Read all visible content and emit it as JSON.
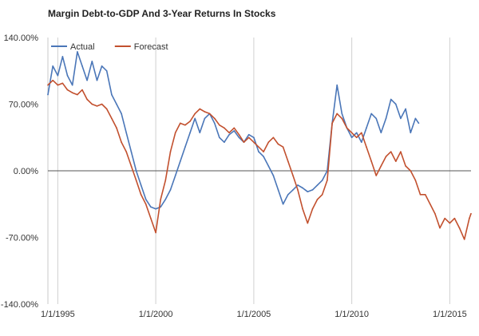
{
  "chart_data": {
    "type": "line",
    "title": "Margin Debt-to-GDP And 3-Year Returns In Stocks",
    "xlabel": "",
    "ylabel": "",
    "ylim": [
      -140,
      140
    ],
    "yticks": [
      140,
      70,
      0,
      -70,
      -140
    ],
    "ytick_labels": [
      "140.00%",
      "70.00%",
      "0.00%",
      "-70.00%",
      "-140.00%"
    ],
    "xlim": [
      "1994-07-01",
      "2016-02-01"
    ],
    "xticks": [
      "1995-01-01",
      "2000-01-01",
      "2005-01-01",
      "2010-01-01",
      "2015-01-01"
    ],
    "xtick_labels": [
      "1/1/1995",
      "1/1/2000",
      "1/1/2005",
      "1/1/2010",
      "1/1/2015"
    ],
    "grid": "vertical",
    "legend": "top-left",
    "series": [
      {
        "name": "Actual",
        "color": "#4a76b8",
        "points": [
          [
            "1994-07-01",
            80
          ],
          [
            "1994-10-01",
            110
          ],
          [
            "1995-01-01",
            100
          ],
          [
            "1995-04-01",
            120
          ],
          [
            "1995-07-01",
            100
          ],
          [
            "1995-10-01",
            90
          ],
          [
            "1996-01-01",
            125
          ],
          [
            "1996-04-01",
            110
          ],
          [
            "1996-07-01",
            95
          ],
          [
            "1996-10-01",
            115
          ],
          [
            "1997-01-01",
            95
          ],
          [
            "1997-04-01",
            110
          ],
          [
            "1997-07-01",
            105
          ],
          [
            "1997-10-01",
            80
          ],
          [
            "1998-01-01",
            70
          ],
          [
            "1998-04-01",
            60
          ],
          [
            "1998-07-01",
            40
          ],
          [
            "1998-10-01",
            20
          ],
          [
            "1999-01-01",
            0
          ],
          [
            "1999-04-01",
            -15
          ],
          [
            "1999-07-01",
            -30
          ],
          [
            "1999-10-01",
            -38
          ],
          [
            "2000-01-01",
            -40
          ],
          [
            "2000-04-01",
            -38
          ],
          [
            "2000-07-01",
            -30
          ],
          [
            "2000-10-01",
            -20
          ],
          [
            "2001-01-01",
            -5
          ],
          [
            "2001-04-01",
            10
          ],
          [
            "2001-07-01",
            25
          ],
          [
            "2001-10-01",
            40
          ],
          [
            "2002-01-01",
            55
          ],
          [
            "2002-04-01",
            40
          ],
          [
            "2002-07-01",
            55
          ],
          [
            "2002-10-01",
            60
          ],
          [
            "2003-01-01",
            50
          ],
          [
            "2003-04-01",
            35
          ],
          [
            "2003-07-01",
            30
          ],
          [
            "2003-10-01",
            38
          ],
          [
            "2004-01-01",
            42
          ],
          [
            "2004-04-01",
            35
          ],
          [
            "2004-07-01",
            30
          ],
          [
            "2004-10-01",
            38
          ],
          [
            "2005-01-01",
            35
          ],
          [
            "2005-04-01",
            20
          ],
          [
            "2005-07-01",
            15
          ],
          [
            "2005-10-01",
            5
          ],
          [
            "2006-01-01",
            -5
          ],
          [
            "2006-04-01",
            -20
          ],
          [
            "2006-07-01",
            -35
          ],
          [
            "2006-10-01",
            -25
          ],
          [
            "2007-01-01",
            -20
          ],
          [
            "2007-04-01",
            -15
          ],
          [
            "2007-07-01",
            -18
          ],
          [
            "2007-10-01",
            -22
          ],
          [
            "2008-01-01",
            -20
          ],
          [
            "2008-04-01",
            -15
          ],
          [
            "2008-07-01",
            -10
          ],
          [
            "2008-10-01",
            0
          ],
          [
            "2009-01-01",
            50
          ],
          [
            "2009-04-01",
            90
          ],
          [
            "2009-07-01",
            60
          ],
          [
            "2009-10-01",
            45
          ],
          [
            "2010-01-01",
            35
          ],
          [
            "2010-04-01",
            40
          ],
          [
            "2010-07-01",
            30
          ],
          [
            "2010-10-01",
            45
          ],
          [
            "2011-01-01",
            60
          ],
          [
            "2011-04-01",
            55
          ],
          [
            "2011-07-01",
            40
          ],
          [
            "2011-10-01",
            55
          ],
          [
            "2012-01-01",
            75
          ],
          [
            "2012-04-01",
            70
          ],
          [
            "2012-07-01",
            55
          ],
          [
            "2012-10-01",
            65
          ],
          [
            "2013-01-01",
            40
          ],
          [
            "2013-04-01",
            55
          ],
          [
            "2013-06-01",
            50
          ]
        ]
      },
      {
        "name": "Forecast",
        "color": "#c2502e",
        "points": [
          [
            "1994-07-01",
            90
          ],
          [
            "1994-10-01",
            95
          ],
          [
            "1995-01-01",
            90
          ],
          [
            "1995-04-01",
            92
          ],
          [
            "1995-07-01",
            85
          ],
          [
            "1995-10-01",
            82
          ],
          [
            "1996-01-01",
            80
          ],
          [
            "1996-04-01",
            85
          ],
          [
            "1996-07-01",
            75
          ],
          [
            "1996-10-01",
            70
          ],
          [
            "1997-01-01",
            68
          ],
          [
            "1997-04-01",
            70
          ],
          [
            "1997-07-01",
            65
          ],
          [
            "1997-10-01",
            55
          ],
          [
            "1998-01-01",
            45
          ],
          [
            "1998-04-01",
            30
          ],
          [
            "1998-07-01",
            20
          ],
          [
            "1998-10-01",
            5
          ],
          [
            "1999-01-01",
            -10
          ],
          [
            "1999-04-01",
            -25
          ],
          [
            "1999-07-01",
            -35
          ],
          [
            "1999-10-01",
            -50
          ],
          [
            "2000-01-01",
            -65
          ],
          [
            "2000-04-01",
            -30
          ],
          [
            "2000-07-01",
            -10
          ],
          [
            "2000-10-01",
            20
          ],
          [
            "2001-01-01",
            40
          ],
          [
            "2001-04-01",
            50
          ],
          [
            "2001-07-01",
            48
          ],
          [
            "2001-10-01",
            52
          ],
          [
            "2002-01-01",
            60
          ],
          [
            "2002-04-01",
            65
          ],
          [
            "2002-07-01",
            62
          ],
          [
            "2002-10-01",
            60
          ],
          [
            "2003-01-01",
            55
          ],
          [
            "2003-04-01",
            48
          ],
          [
            "2003-07-01",
            45
          ],
          [
            "2003-10-01",
            40
          ],
          [
            "2004-01-01",
            45
          ],
          [
            "2004-04-01",
            38
          ],
          [
            "2004-07-01",
            30
          ],
          [
            "2004-10-01",
            35
          ],
          [
            "2005-01-01",
            30
          ],
          [
            "2005-04-01",
            25
          ],
          [
            "2005-07-01",
            20
          ],
          [
            "2005-10-01",
            30
          ],
          [
            "2006-01-01",
            35
          ],
          [
            "2006-04-01",
            28
          ],
          [
            "2006-07-01",
            25
          ],
          [
            "2006-10-01",
            10
          ],
          [
            "2007-01-01",
            -5
          ],
          [
            "2007-04-01",
            -20
          ],
          [
            "2007-07-01",
            -40
          ],
          [
            "2007-10-01",
            -55
          ],
          [
            "2008-01-01",
            -40
          ],
          [
            "2008-04-01",
            -30
          ],
          [
            "2008-07-01",
            -25
          ],
          [
            "2008-10-01",
            -10
          ],
          [
            "2009-01-01",
            50
          ],
          [
            "2009-04-01",
            60
          ],
          [
            "2009-07-01",
            55
          ],
          [
            "2009-10-01",
            45
          ],
          [
            "2010-01-01",
            40
          ],
          [
            "2010-04-01",
            35
          ],
          [
            "2010-07-01",
            40
          ],
          [
            "2010-10-01",
            25
          ],
          [
            "2011-01-01",
            10
          ],
          [
            "2011-04-01",
            -5
          ],
          [
            "2011-07-01",
            5
          ],
          [
            "2011-10-01",
            15
          ],
          [
            "2012-01-01",
            20
          ],
          [
            "2012-04-01",
            10
          ],
          [
            "2012-07-01",
            20
          ],
          [
            "2012-10-01",
            5
          ],
          [
            "2013-01-01",
            0
          ],
          [
            "2013-04-01",
            -10
          ],
          [
            "2013-07-01",
            -25
          ],
          [
            "2013-10-01",
            -25
          ],
          [
            "2014-01-01",
            -35
          ],
          [
            "2014-04-01",
            -45
          ],
          [
            "2014-07-01",
            -60
          ],
          [
            "2014-10-01",
            -50
          ],
          [
            "2015-01-01",
            -55
          ],
          [
            "2015-04-01",
            -50
          ],
          [
            "2015-07-01",
            -60
          ],
          [
            "2015-10-01",
            -72
          ],
          [
            "2016-01-01",
            -50
          ],
          [
            "2016-02-01",
            -45
          ]
        ]
      }
    ]
  }
}
